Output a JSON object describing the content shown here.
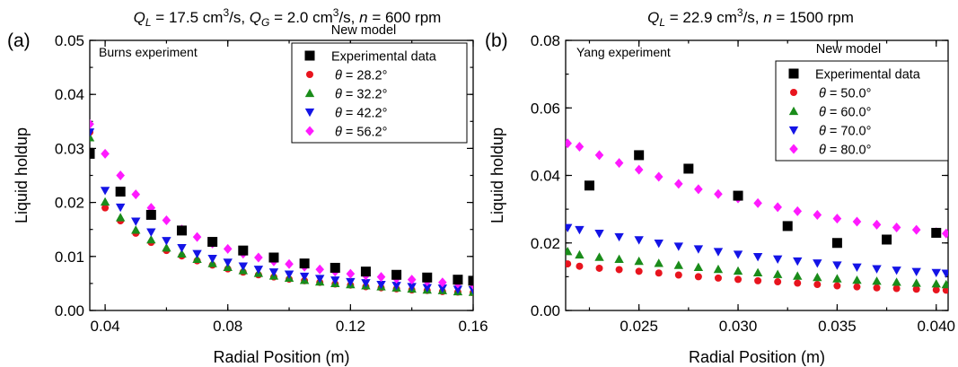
{
  "chart_data": [
    {
      "type": "scatter",
      "panel_label": "(a)",
      "title_parts": [
        "Q",
        "L",
        " = 17.5 cm",
        "3",
        "/s, ",
        "Q",
        "G",
        " = 2.0 cm",
        "3",
        "/s, ",
        "n",
        " = 600 rpm"
      ],
      "annotation": "Burns experiment",
      "legend_title": "New model",
      "legend_position": "top-right",
      "xlabel": "Radial Position (m)",
      "ylabel": "Liquid holdup",
      "xlim": [
        0.035,
        0.16
      ],
      "ylim": [
        0,
        0.05
      ],
      "xticks": [
        0.04,
        0.08,
        0.12,
        0.16
      ],
      "xtick_labels": [
        "0.04",
        "0.08",
        "0.12",
        "0.16"
      ],
      "yticks": [
        0,
        0.01,
        0.02,
        0.03,
        0.04,
        0.05
      ],
      "ytick_labels": [
        "0.00",
        "0.01",
        "0.02",
        "0.03",
        "0.04",
        "0.05"
      ],
      "x_minor": 0.02,
      "y_minor": 0.005,
      "grid": false,
      "series": [
        {
          "name": "Experimental data",
          "marker": "square",
          "color": "#000000",
          "x": [
            0.035,
            0.045,
            0.055,
            0.065,
            0.075,
            0.085,
            0.095,
            0.105,
            0.115,
            0.125,
            0.135,
            0.145,
            0.155,
            0.16
          ],
          "y": [
            0.029,
            0.022,
            0.0177,
            0.0148,
            0.0127,
            0.0111,
            0.0098,
            0.0087,
            0.0079,
            0.0072,
            0.0066,
            0.0061,
            0.0057,
            0.0055
          ]
        },
        {
          "name": "θ = 28.2°",
          "name_parts": [
            "θ",
            " = 28.2°"
          ],
          "marker": "circle",
          "color": "#e8141e",
          "x": [
            0.035,
            0.04,
            0.045,
            0.05,
            0.055,
            0.06,
            0.065,
            0.07,
            0.075,
            0.08,
            0.085,
            0.09,
            0.095,
            0.1,
            0.105,
            0.11,
            0.115,
            0.12,
            0.125,
            0.13,
            0.135,
            0.14,
            0.145,
            0.15,
            0.155,
            0.16
          ],
          "y": [
            0.033,
            0.019,
            0.0166,
            0.0143,
            0.0126,
            0.0111,
            0.0101,
            0.0092,
            0.0084,
            0.0077,
            0.0071,
            0.0066,
            0.0062,
            0.0058,
            0.0055,
            0.0052,
            0.0049,
            0.0047,
            0.0044,
            0.0042,
            0.004,
            0.0038,
            0.0037,
            0.0035,
            0.0034,
            0.0033
          ]
        },
        {
          "name": "θ = 32.2°",
          "name_parts": [
            "θ",
            " = 32.2°"
          ],
          "marker": "triangle-up",
          "color": "#1a8c1a",
          "x": [
            0.035,
            0.04,
            0.045,
            0.05,
            0.055,
            0.06,
            0.065,
            0.07,
            0.075,
            0.08,
            0.085,
            0.09,
            0.095,
            0.1,
            0.105,
            0.11,
            0.115,
            0.12,
            0.125,
            0.13,
            0.135,
            0.14,
            0.145,
            0.15,
            0.155,
            0.16
          ],
          "y": [
            0.032,
            0.0201,
            0.0172,
            0.0149,
            0.0131,
            0.0116,
            0.0105,
            0.0095,
            0.0087,
            0.008,
            0.0074,
            0.0069,
            0.0064,
            0.006,
            0.0056,
            0.0053,
            0.005,
            0.0048,
            0.0046,
            0.0044,
            0.0042,
            0.004,
            0.0038,
            0.0037,
            0.0035,
            0.0034
          ]
        },
        {
          "name": "θ = 42.2°",
          "name_parts": [
            "θ",
            " = 42.2°"
          ],
          "marker": "triangle-down",
          "color": "#1414e6",
          "x": [
            0.035,
            0.04,
            0.045,
            0.05,
            0.055,
            0.06,
            0.065,
            0.07,
            0.075,
            0.08,
            0.085,
            0.09,
            0.095,
            0.1,
            0.105,
            0.11,
            0.115,
            0.12,
            0.125,
            0.13,
            0.135,
            0.14,
            0.145,
            0.15,
            0.155,
            0.16
          ],
          "y": [
            0.033,
            0.0222,
            0.0191,
            0.0165,
            0.0145,
            0.0129,
            0.0116,
            0.0105,
            0.0096,
            0.0089,
            0.0082,
            0.0076,
            0.0071,
            0.0067,
            0.0063,
            0.0059,
            0.0056,
            0.0053,
            0.0051,
            0.0048,
            0.0046,
            0.0044,
            0.0042,
            0.0041,
            0.0039,
            0.0038
          ]
        },
        {
          "name": "θ = 56.2°",
          "name_parts": [
            "θ",
            " = 56.2°"
          ],
          "marker": "diamond",
          "color": "#ff1aff",
          "x": [
            0.035,
            0.04,
            0.045,
            0.05,
            0.055,
            0.06,
            0.065,
            0.07,
            0.075,
            0.08,
            0.085,
            0.09,
            0.095,
            0.1,
            0.105,
            0.11,
            0.115,
            0.12,
            0.125,
            0.13,
            0.135,
            0.14,
            0.145,
            0.15,
            0.155,
            0.16
          ],
          "y": [
            0.0345,
            0.029,
            0.025,
            0.0215,
            0.019,
            0.0167,
            0.015,
            0.0136,
            0.0124,
            0.0114,
            0.0105,
            0.0098,
            0.0091,
            0.0086,
            0.0081,
            0.0076,
            0.0072,
            0.0068,
            0.0065,
            0.0062,
            0.0059,
            0.0057,
            0.0054,
            0.0052,
            0.005,
            0.0048
          ]
        }
      ]
    },
    {
      "type": "scatter",
      "panel_label": "(b)",
      "title_parts": [
        "Q",
        "L",
        " = 22.9 cm",
        "3",
        "/s, ",
        "n",
        " = 1500 rpm"
      ],
      "annotation": "Yang experiment",
      "legend_title": "New model",
      "legend_position": "top-right",
      "xlabel": "Radial Position (m)",
      "ylabel": "Liquid holdup",
      "xlim": [
        0.0213,
        0.0406
      ],
      "ylim": [
        0,
        0.08
      ],
      "xticks": [
        0.025,
        0.03,
        0.035,
        0.04
      ],
      "xtick_labels": [
        "0.025",
        "0.030",
        "0.035",
        "0.040"
      ],
      "yticks": [
        0,
        0.02,
        0.04,
        0.06,
        0.08
      ],
      "ytick_labels": [
        "0.00",
        "0.02",
        "0.04",
        "0.06",
        "0.08"
      ],
      "x_minor": 0.0025,
      "y_minor": 0.01,
      "grid": false,
      "series": [
        {
          "name": "Experimental data",
          "marker": "square",
          "color": "#000000",
          "x": [
            0.0225,
            0.025,
            0.0275,
            0.03,
            0.0325,
            0.035,
            0.0375,
            0.04
          ],
          "y": [
            0.037,
            0.046,
            0.042,
            0.034,
            0.025,
            0.02,
            0.021,
            0.023
          ]
        },
        {
          "name": "θ = 50.0°",
          "name_parts": [
            "θ",
            " = 50.0°"
          ],
          "marker": "circle",
          "color": "#e8141e",
          "x": [
            0.0214,
            0.022,
            0.023,
            0.024,
            0.025,
            0.026,
            0.027,
            0.028,
            0.029,
            0.03,
            0.031,
            0.032,
            0.033,
            0.034,
            0.035,
            0.036,
            0.037,
            0.038,
            0.039,
            0.04,
            0.0405
          ],
          "y": [
            0.0138,
            0.0131,
            0.0125,
            0.0121,
            0.0116,
            0.0111,
            0.0105,
            0.01,
            0.0096,
            0.0092,
            0.0088,
            0.0085,
            0.0081,
            0.0077,
            0.0073,
            0.007,
            0.0067,
            0.0065,
            0.0063,
            0.0061,
            0.006
          ]
        },
        {
          "name": "θ = 60.0°",
          "name_parts": [
            "θ",
            " = 60.0°"
          ],
          "marker": "triangle-up",
          "color": "#1a8c1a",
          "x": [
            0.0214,
            0.022,
            0.023,
            0.024,
            0.025,
            0.026,
            0.027,
            0.028,
            0.029,
            0.03,
            0.031,
            0.032,
            0.033,
            0.034,
            0.035,
            0.036,
            0.037,
            0.038,
            0.039,
            0.04,
            0.0405
          ],
          "y": [
            0.0175,
            0.0165,
            0.0158,
            0.0152,
            0.0146,
            0.014,
            0.0134,
            0.0128,
            0.0122,
            0.0117,
            0.0112,
            0.0107,
            0.0102,
            0.0098,
            0.0094,
            0.009,
            0.0087,
            0.0084,
            0.0081,
            0.0079,
            0.0077
          ]
        },
        {
          "name": "θ = 70.0°",
          "name_parts": [
            "θ",
            " = 70.0°"
          ],
          "marker": "triangle-down",
          "color": "#1414e6",
          "x": [
            0.0214,
            0.022,
            0.023,
            0.024,
            0.025,
            0.026,
            0.027,
            0.028,
            0.029,
            0.03,
            0.031,
            0.032,
            0.033,
            0.034,
            0.035,
            0.036,
            0.037,
            0.038,
            0.039,
            0.04,
            0.0405
          ],
          "y": [
            0.0245,
            0.0239,
            0.0228,
            0.0218,
            0.0209,
            0.0199,
            0.019,
            0.0182,
            0.0174,
            0.0166,
            0.0159,
            0.0152,
            0.0146,
            0.014,
            0.0134,
            0.0128,
            0.0123,
            0.0119,
            0.0115,
            0.0112,
            0.011
          ]
        },
        {
          "name": "θ = 80.0°",
          "name_parts": [
            "θ",
            " = 80.0°"
          ],
          "marker": "diamond",
          "color": "#ff1aff",
          "x": [
            0.0214,
            0.022,
            0.023,
            0.024,
            0.025,
            0.026,
            0.027,
            0.028,
            0.029,
            0.03,
            0.031,
            0.032,
            0.033,
            0.034,
            0.035,
            0.036,
            0.037,
            0.038,
            0.039,
            0.04,
            0.0405
          ],
          "y": [
            0.0495,
            0.0485,
            0.046,
            0.0437,
            0.0417,
            0.0396,
            0.0375,
            0.0359,
            0.0345,
            0.0332,
            0.0318,
            0.0306,
            0.0294,
            0.0283,
            0.0272,
            0.0263,
            0.0254,
            0.0246,
            0.0239,
            0.0232,
            0.0228
          ]
        }
      ]
    }
  ]
}
